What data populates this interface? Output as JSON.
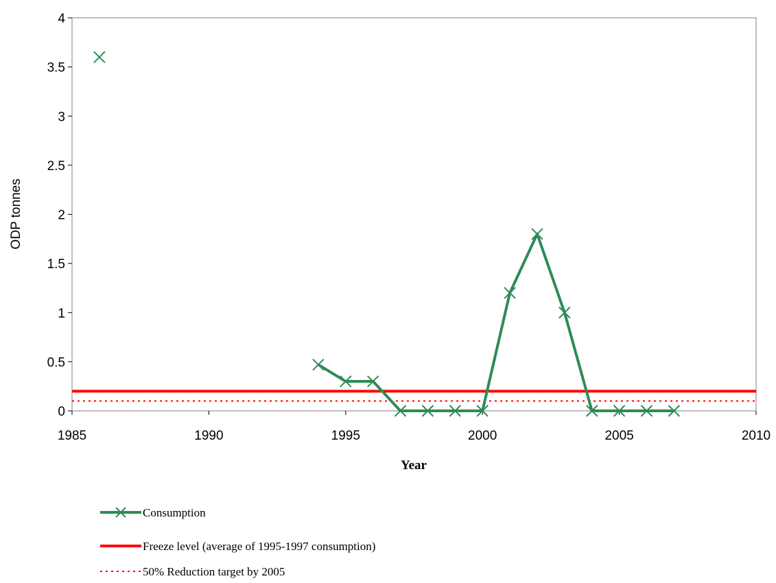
{
  "chart_data": {
    "type": "line",
    "title": "",
    "xlabel": "Year",
    "ylabel": "ODP tonnes",
    "xlim": [
      1985,
      2010
    ],
    "ylim": [
      0,
      4
    ],
    "x_ticks": [
      "1985",
      "1990",
      "1995",
      "2000",
      "2005",
      "2010"
    ],
    "y_ticks": [
      "0",
      "0.5",
      "1",
      "1.5",
      "2",
      "2.5",
      "3",
      "3.5",
      "4"
    ],
    "grid": false,
    "legend_position": "bottom",
    "series": [
      {
        "name": "Consumption",
        "color": "#2e8b57",
        "marker": "x",
        "points": [
          {
            "x": 1986,
            "y": 3.6
          },
          {
            "x": 1994,
            "y": 0.47
          },
          {
            "x": 1995,
            "y": 0.3
          },
          {
            "x": 1996,
            "y": 0.3
          },
          {
            "x": 1997,
            "y": 0
          },
          {
            "x": 1998,
            "y": 0
          },
          {
            "x": 1999,
            "y": 0
          },
          {
            "x": 2000,
            "y": 0
          },
          {
            "x": 2001,
            "y": 1.2
          },
          {
            "x": 2002,
            "y": 1.8
          },
          {
            "x": 2003,
            "y": 1.0
          },
          {
            "x": 2004,
            "y": 0
          },
          {
            "x": 2005,
            "y": 0
          },
          {
            "x": 2006,
            "y": 0
          },
          {
            "x": 2007,
            "y": 0
          }
        ]
      },
      {
        "name": "Freeze level (average of 1995-1997 consumption)",
        "color": "#ff0000",
        "style": "solid",
        "y": 0.2
      },
      {
        "name": "50% Reduction target by 2005",
        "color": "#ff0000",
        "style": "dotted",
        "y": 0.1
      }
    ]
  }
}
